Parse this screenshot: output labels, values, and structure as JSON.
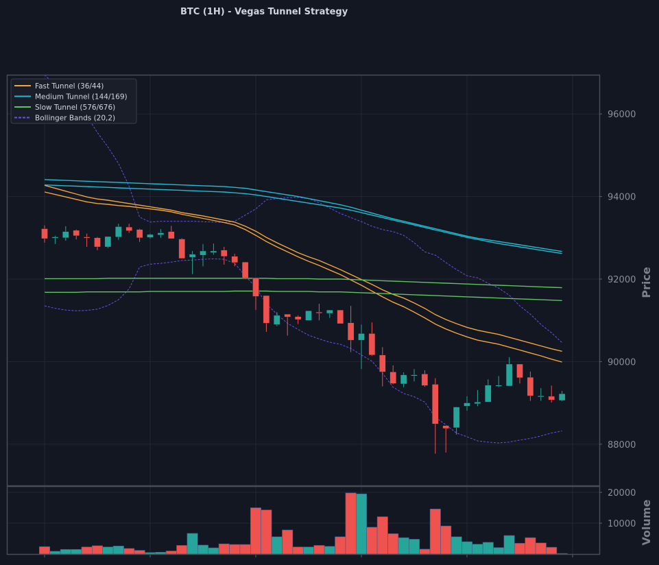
{
  "title": "BTC (1H) - Vegas Tunnel Strategy",
  "colors": {
    "background": "#131722",
    "panel_border": "#474c57",
    "grid": "#232734",
    "up": "#26a69a",
    "down": "#ef5350",
    "fast": "#f5a53a",
    "medium": "#1fbcd2",
    "slow": "#5cc461",
    "bollinger": "#6f4ee6"
  },
  "chart_data": [
    {
      "type": "candlestick",
      "title": "BTC (1H) - Vegas Tunnel Strategy",
      "ylabel": "Price",
      "ylim": [
        87000,
        96950
      ],
      "y_ticks": [
        88000,
        90000,
        92000,
        94000,
        96000
      ],
      "grid": true,
      "legend_position": "top-left",
      "x": [
        0,
        1,
        2,
        3,
        4,
        5,
        6,
        7,
        8,
        9,
        10,
        11,
        12,
        13,
        14,
        15,
        16,
        17,
        18,
        19,
        20,
        21,
        22,
        23,
        24,
        25,
        26,
        27,
        28,
        29,
        30,
        31,
        32,
        33,
        34,
        35,
        36,
        37,
        38,
        39,
        40,
        41,
        42,
        43,
        44,
        45,
        46,
        47,
        48,
        49
      ],
      "ohlc": [
        [
          93220,
          93300,
          92880,
          92980
        ],
        [
          93000,
          93050,
          92850,
          93020
        ],
        [
          93000,
          93280,
          92930,
          93150
        ],
        [
          93180,
          93200,
          92960,
          93050
        ],
        [
          93020,
          93100,
          92780,
          93000
        ],
        [
          93000,
          93020,
          92700,
          92780
        ],
        [
          92780,
          93030,
          92750,
          93030
        ],
        [
          93020,
          93340,
          92950,
          93270
        ],
        [
          93260,
          93340,
          93120,
          93170
        ],
        [
          93200,
          93220,
          92900,
          93000
        ],
        [
          93010,
          93100,
          92980,
          93080
        ],
        [
          93070,
          93210,
          93000,
          93120
        ],
        [
          93150,
          93290,
          92980,
          92980
        ],
        [
          92970,
          92990,
          92500,
          92500
        ],
        [
          92530,
          92680,
          92120,
          92600
        ],
        [
          92580,
          92850,
          92310,
          92680
        ],
        [
          92640,
          92860,
          92590,
          92680
        ],
        [
          92700,
          92780,
          92350,
          92550
        ],
        [
          92550,
          92610,
          92310,
          92400
        ],
        [
          92410,
          92410,
          92000,
          92030
        ],
        [
          92030,
          92030,
          91250,
          91580
        ],
        [
          91600,
          91600,
          90720,
          90930
        ],
        [
          90900,
          91200,
          90860,
          91120
        ],
        [
          91150,
          91150,
          90630,
          91080
        ],
        [
          91090,
          91120,
          90910,
          91020
        ],
        [
          91000,
          91230,
          90990,
          91230
        ],
        [
          91200,
          91400,
          91000,
          91180
        ],
        [
          91170,
          91250,
          91060,
          91250
        ],
        [
          91250,
          91250,
          90920,
          90920
        ],
        [
          90940,
          91350,
          90230,
          90520
        ],
        [
          90520,
          90900,
          89820,
          90680
        ],
        [
          90680,
          90950,
          90140,
          90160
        ],
        [
          90160,
          90350,
          89400,
          89750
        ],
        [
          89750,
          89910,
          89450,
          89470
        ],
        [
          89460,
          89740,
          89380,
          89680
        ],
        [
          89660,
          89820,
          89520,
          89680
        ],
        [
          89700,
          89790,
          89390,
          89420
        ],
        [
          89450,
          89600,
          87770,
          88490
        ],
        [
          88450,
          88450,
          87800,
          88380
        ],
        [
          88400,
          88900,
          88230,
          88900
        ],
        [
          88920,
          89160,
          88810,
          89000
        ],
        [
          88980,
          89310,
          88920,
          89020
        ],
        [
          89020,
          89570,
          89020,
          89430
        ],
        [
          89410,
          89650,
          89380,
          89430
        ],
        [
          89410,
          90110,
          89410,
          89940
        ],
        [
          89940,
          89940,
          89470,
          89610
        ],
        [
          89620,
          89760,
          89050,
          89170
        ],
        [
          89160,
          89360,
          89050,
          89170
        ],
        [
          89160,
          89420,
          89010,
          89070
        ],
        [
          89060,
          89290,
          89040,
          89220
        ]
      ],
      "series": [
        {
          "name": "Fast Tunnel (36/44)",
          "style": "solid",
          "color": "#f5a53a",
          "lines": [
            [
              94270,
              94200,
              94130,
              94060,
              93990,
              93940,
              93910,
              93870,
              93830,
              93790,
              93750,
              93710,
              93670,
              93610,
              93570,
              93530,
              93480,
              93430,
              93380,
              93280,
              93160,
              93010,
              92880,
              92760,
              92640,
              92540,
              92450,
              92340,
              92230,
              92110,
              91990,
              91870,
              91740,
              91630,
              91540,
              91420,
              91290,
              91140,
              91020,
              90920,
              90830,
              90760,
              90710,
              90660,
              90590,
              90520,
              90450,
              90380,
              90310,
              90250
            ],
            [
              94110,
              94050,
              93990,
              93930,
              93870,
              93830,
              93810,
              93780,
              93760,
              93730,
              93700,
              93670,
              93630,
              93570,
              93520,
              93470,
              93420,
              93370,
              93310,
              93200,
              93060,
              92910,
              92780,
              92660,
              92540,
              92430,
              92330,
              92220,
              92110,
              91980,
              91850,
              91710,
              91570,
              91440,
              91330,
              91200,
              91060,
              90910,
              90790,
              90690,
              90600,
              90520,
              90470,
              90420,
              90350,
              90280,
              90210,
              90140,
              90060,
              89990
            ]
          ]
        },
        {
          "name": "Medium Tunnel (144/169)",
          "style": "solid",
          "color": "#1fbcd2",
          "lines": [
            [
              94410,
              94400,
              94390,
              94380,
              94370,
              94360,
              94350,
              94340,
              94330,
              94320,
              94310,
              94300,
              94290,
              94280,
              94270,
              94260,
              94250,
              94240,
              94220,
              94200,
              94160,
              94120,
              94080,
              94040,
              94000,
              93950,
              93900,
              93850,
              93800,
              93740,
              93670,
              93600,
              93530,
              93460,
              93400,
              93340,
              93280,
              93220,
              93160,
              93100,
              93040,
              92990,
              92950,
              92910,
              92870,
              92830,
              92790,
              92750,
              92710,
              92670
            ],
            [
              94280,
              94270,
              94260,
              94250,
              94240,
              94230,
              94220,
              94210,
              94200,
              94190,
              94180,
              94170,
              94160,
              94150,
              94140,
              94130,
              94120,
              94110,
              94090,
              94070,
              94040,
              94000,
              93960,
              93920,
              93880,
              93840,
              93800,
              93760,
              93720,
              93670,
              93610,
              93550,
              93490,
              93430,
              93370,
              93310,
              93250,
              93190,
              93130,
              93070,
              93010,
              92960,
              92910,
              92860,
              92820,
              92780,
              92740,
              92700,
              92660,
              92620
            ]
          ]
        },
        {
          "name": "Slow Tunnel (576/676)",
          "style": "solid",
          "color": "#5cc461",
          "lines": [
            [
              92010,
              92010,
              92010,
              92010,
              92010,
              92010,
              92020,
              92020,
              92020,
              92020,
              92020,
              92020,
              92020,
              92020,
              92020,
              92020,
              92020,
              92020,
              92020,
              92020,
              92020,
              92020,
              92010,
              92010,
              92010,
              92010,
              92000,
              92000,
              92000,
              91990,
              91980,
              91970,
              91960,
              91950,
              91940,
              91930,
              91920,
              91910,
              91900,
              91890,
              91880,
              91870,
              91860,
              91850,
              91840,
              91830,
              91820,
              91810,
              91800,
              91790
            ],
            [
              91680,
              91680,
              91680,
              91680,
              91690,
              91690,
              91690,
              91690,
              91690,
              91690,
              91700,
              91700,
              91700,
              91700,
              91700,
              91700,
              91700,
              91700,
              91710,
              91710,
              91710,
              91710,
              91700,
              91700,
              91700,
              91700,
              91690,
              91690,
              91690,
              91680,
              91670,
              91660,
              91650,
              91640,
              91630,
              91620,
              91610,
              91600,
              91590,
              91580,
              91570,
              91560,
              91550,
              91540,
              91530,
              91520,
              91510,
              91500,
              91490,
              91480
            ]
          ]
        },
        {
          "name": "Bollinger Bands (20,2)",
          "style": "dashed",
          "color": "#6f4ee6",
          "lines": [
            [
              96950,
              96700,
              96450,
              96200,
              95950,
              95550,
              95200,
              94800,
              94250,
              93500,
              93380,
              93400,
              93400,
              93400,
              93400,
              93390,
              93380,
              93370,
              93400,
              93550,
              93700,
              93920,
              93950,
              93970,
              93980,
              93950,
              93850,
              93720,
              93590,
              93490,
              93390,
              93280,
              93200,
              93150,
              93060,
              92880,
              92660,
              92580,
              92400,
              92230,
              92080,
              92030,
              91900,
              91780,
              91610,
              91350,
              91150,
              90900,
              90700,
              90460
            ],
            [
              91350,
              91290,
              91250,
              91230,
              91240,
              91270,
              91360,
              91500,
              91760,
              92290,
              92360,
              92380,
              92410,
              92450,
              92460,
              92480,
              92490,
              92480,
              92380,
              92080,
              91800,
              91400,
              91150,
              90930,
              90780,
              90640,
              90550,
              90470,
              90420,
              90320,
              90160,
              90010,
              89720,
              89380,
              89230,
              89150,
              89020,
              88650,
              88470,
              88270,
              88180,
              88080,
              88050,
              88030,
              88050,
              88100,
              88140,
              88200,
              88270,
              88320
            ]
          ]
        }
      ]
    },
    {
      "type": "bar",
      "ylabel": "Volume",
      "ylim": [
        0,
        22000
      ],
      "y_ticks": [
        10000,
        20000
      ],
      "grid": true,
      "x": [
        0,
        1,
        2,
        3,
        4,
        5,
        6,
        7,
        8,
        9,
        10,
        11,
        12,
        13,
        14,
        15,
        16,
        17,
        18,
        19,
        20,
        21,
        22,
        23,
        24,
        25,
        26,
        27,
        28,
        29,
        30,
        31,
        32,
        33,
        34,
        35,
        36,
        37,
        38,
        39,
        40,
        41,
        42,
        43,
        44,
        45,
        46,
        47,
        48,
        49
      ],
      "values": [
        2400,
        900,
        1500,
        1500,
        2300,
        2700,
        2300,
        2600,
        1800,
        1200,
        500,
        600,
        1000,
        2800,
        6700,
        2900,
        2000,
        3300,
        3100,
        3100,
        15000,
        14300,
        5600,
        7800,
        2300,
        2300,
        2800,
        2500,
        5600,
        19800,
        19500,
        8700,
        12100,
        6600,
        5300,
        4800,
        1600,
        14600,
        9100,
        5600,
        4000,
        3200,
        3800,
        2100,
        6000,
        3500,
        5300,
        3600,
        2200,
        200
      ],
      "up": [
        false,
        true,
        true,
        true,
        false,
        false,
        true,
        true,
        false,
        false,
        true,
        true,
        false,
        false,
        true,
        true,
        true,
        false,
        false,
        false,
        false,
        false,
        true,
        false,
        false,
        true,
        false,
        true,
        false,
        false,
        true,
        false,
        false,
        false,
        true,
        true,
        false,
        false,
        false,
        true,
        true,
        true,
        true,
        true,
        true,
        false,
        false,
        false,
        false,
        true
      ]
    }
  ]
}
